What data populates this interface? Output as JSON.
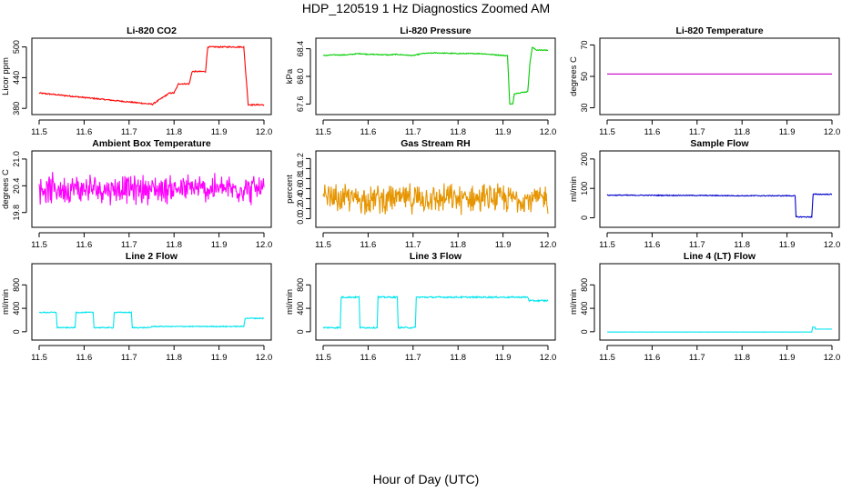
{
  "page": {
    "title": "HDP_120519  1 Hz Diagnostics Zoomed AM",
    "xlabel": "Hour of Day (UTC)"
  },
  "chart_data": [
    {
      "type": "line",
      "title": "Li-820 CO2",
      "ylabel": "Licor ppm",
      "color": "#ff0000",
      "xlim": [
        11.5,
        12.0
      ],
      "ylim": [
        375,
        510
      ],
      "xticks": [
        "11.5",
        "11.6",
        "11.7",
        "11.8",
        "11.9",
        "12.0"
      ],
      "yticks": [
        "380",
        "440",
        "500"
      ],
      "series": [
        {
          "noise": 1.2,
          "steps": [
            [
              11.5,
              410
            ],
            [
              11.752,
              388
            ],
            [
              11.79,
              410
            ],
            [
              11.8,
              410
            ],
            [
              11.81,
              428
            ],
            [
              11.834,
              428
            ],
            [
              11.84,
              452
            ],
            [
              11.87,
              452
            ],
            [
              11.875,
              500
            ],
            [
              11.955,
              500
            ],
            [
              11.965,
              387
            ],
            [
              12.0,
              387
            ]
          ]
        }
      ]
    },
    {
      "type": "line",
      "title": "Li-820 Pressure",
      "ylabel": "kPa",
      "color": "#00cc00",
      "xlim": [
        11.5,
        12.0
      ],
      "ylim": [
        67.5,
        68.5
      ],
      "xticks": [
        "11.5",
        "11.6",
        "11.7",
        "11.8",
        "11.9",
        "12.0"
      ],
      "yticks": [
        "67.6",
        "68.0",
        "68.4"
      ],
      "series": [
        {
          "noise": 0.006,
          "steps": [
            [
              11.5,
              68.3
            ],
            [
              11.52,
              68.31
            ],
            [
              11.55,
              68.31
            ],
            [
              11.58,
              68.33
            ],
            [
              11.6,
              68.32
            ],
            [
              11.65,
              68.31
            ],
            [
              11.66,
              68.32
            ],
            [
              11.7,
              68.3
            ],
            [
              11.72,
              68.33
            ],
            [
              11.75,
              68.34
            ],
            [
              11.8,
              68.33
            ],
            [
              11.85,
              68.33
            ],
            [
              11.905,
              68.3
            ],
            [
              11.91,
              68.3
            ],
            [
              11.915,
              67.6
            ],
            [
              11.922,
              67.6
            ],
            [
              11.925,
              67.75
            ],
            [
              11.955,
              67.78
            ],
            [
              11.96,
              68.2
            ],
            [
              11.965,
              68.42
            ],
            [
              11.975,
              68.38
            ],
            [
              12.0,
              68.38
            ]
          ]
        }
      ]
    },
    {
      "type": "line",
      "title": "Li-820 Temperature",
      "ylabel": "degrees C",
      "color": "#cc00cc",
      "xlim": [
        11.5,
        12.0
      ],
      "ylim": [
        28,
        72
      ],
      "xticks": [
        "11.5",
        "11.6",
        "11.7",
        "11.8",
        "11.9",
        "12.0"
      ],
      "yticks": [
        "30",
        "50",
        "70"
      ],
      "series": [
        {
          "noise": 0.0,
          "steps": [
            [
              11.5,
              51.5
            ],
            [
              12.0,
              51.5
            ]
          ]
        }
      ]
    },
    {
      "type": "line",
      "title": "Ambient Box Temperature",
      "ylabel": "degrees C",
      "color": "#ff00ff",
      "xlim": [
        11.5,
        12.0
      ],
      "ylim": [
        19.55,
        21.1
      ],
      "xticks": [
        "11.5",
        "11.6",
        "11.7",
        "11.8",
        "11.9",
        "12.0"
      ],
      "yticks": [
        "19.8",
        "20.4",
        "21.0"
      ],
      "series": [
        {
          "noise": 0.28,
          "center": 20.33,
          "min": 19.75,
          "max": 21.0,
          "mode": "noise"
        }
      ]
    },
    {
      "type": "line",
      "title": "Gas Stream RH",
      "ylabel": "percent",
      "color": "#e69500",
      "xlim": [
        11.5,
        12.0
      ],
      "ylim": [
        -0.1,
        1.28
      ],
      "xticks": [
        "11.5",
        "11.6",
        "11.7",
        "11.8",
        "11.9",
        "12.0"
      ],
      "yticks": [
        "0.0",
        "0.2",
        "0.4",
        "0.6",
        "0.8",
        "1.0",
        "1.2"
      ],
      "series": [
        {
          "noise": 0.25,
          "center": 0.4,
          "min": -0.05,
          "max": 1.15,
          "mode": "noise"
        }
      ]
    },
    {
      "type": "line",
      "title": "Sample Flow",
      "ylabel": "ml/min",
      "color": "#0000cc",
      "xlim": [
        11.5,
        12.0
      ],
      "ylim": [
        -20,
        215
      ],
      "xticks": [
        "11.5",
        "11.6",
        "11.7",
        "11.8",
        "11.9",
        "12.0"
      ],
      "yticks": [
        "0",
        "100",
        "200"
      ],
      "series": [
        {
          "noise": 1.5,
          "steps": [
            [
              11.5,
              77
            ],
            [
              11.7,
              76
            ],
            [
              11.8,
              75
            ],
            [
              11.918,
              75
            ],
            [
              11.92,
              3
            ],
            [
              11.955,
              3
            ],
            [
              11.958,
              80
            ],
            [
              12.0,
              80
            ]
          ]
        }
      ]
    },
    {
      "type": "line",
      "title": "Line 2 Flow",
      "ylabel": "ml/min",
      "color": "#00e5ee",
      "xlim": [
        11.5,
        12.0
      ],
      "ylim": [
        -80,
        1100
      ],
      "xticks": [
        "11.5",
        "11.6",
        "11.7",
        "11.8",
        "11.9",
        "12.0"
      ],
      "yticks": [
        "0",
        "400",
        "800"
      ],
      "series": [
        {
          "noise": 8,
          "steps": [
            [
              11.5,
              330
            ],
            [
              11.538,
              330
            ],
            [
              11.54,
              70
            ],
            [
              11.58,
              70
            ],
            [
              11.582,
              330
            ],
            [
              11.62,
              330
            ],
            [
              11.622,
              70
            ],
            [
              11.665,
              70
            ],
            [
              11.667,
              330
            ],
            [
              11.705,
              330
            ],
            [
              11.707,
              70
            ],
            [
              11.748,
              70
            ],
            [
              11.75,
              90
            ],
            [
              11.955,
              90
            ],
            [
              11.958,
              230
            ],
            [
              12.0,
              230
            ]
          ]
        }
      ]
    },
    {
      "type": "line",
      "title": "Line 3 Flow",
      "ylabel": "ml/min",
      "color": "#00e5ee",
      "xlim": [
        11.5,
        12.0
      ],
      "ylim": [
        -80,
        1100
      ],
      "xticks": [
        "11.5",
        "11.6",
        "11.7",
        "11.8",
        "11.9",
        "12.0"
      ],
      "yticks": [
        "0",
        "400",
        "800"
      ],
      "series": [
        {
          "noise": 12,
          "steps": [
            [
              11.5,
              70
            ],
            [
              11.538,
              70
            ],
            [
              11.54,
              590
            ],
            [
              11.58,
              590
            ],
            [
              11.582,
              70
            ],
            [
              11.62,
              70
            ],
            [
              11.622,
              590
            ],
            [
              11.665,
              590
            ],
            [
              11.667,
              70
            ],
            [
              11.705,
              70
            ],
            [
              11.707,
              590
            ],
            [
              11.955,
              590
            ],
            [
              11.958,
              530
            ],
            [
              12.0,
              530
            ]
          ]
        }
      ]
    },
    {
      "type": "line",
      "title": "Line 4 (LT) Flow",
      "ylabel": "ml/min",
      "color": "#00e5ee",
      "xlim": [
        11.5,
        12.0
      ],
      "ylim": [
        -80,
        1100
      ],
      "xticks": [
        "11.5",
        "11.6",
        "11.7",
        "11.8",
        "11.9",
        "12.0"
      ],
      "yticks": [
        "0",
        "400",
        "800"
      ],
      "series": [
        {
          "noise": 1,
          "steps": [
            [
              11.5,
              -5
            ],
            [
              11.955,
              -5
            ],
            [
              11.957,
              80
            ],
            [
              11.962,
              80
            ],
            [
              11.963,
              45
            ],
            [
              12.0,
              45
            ]
          ]
        }
      ]
    }
  ]
}
